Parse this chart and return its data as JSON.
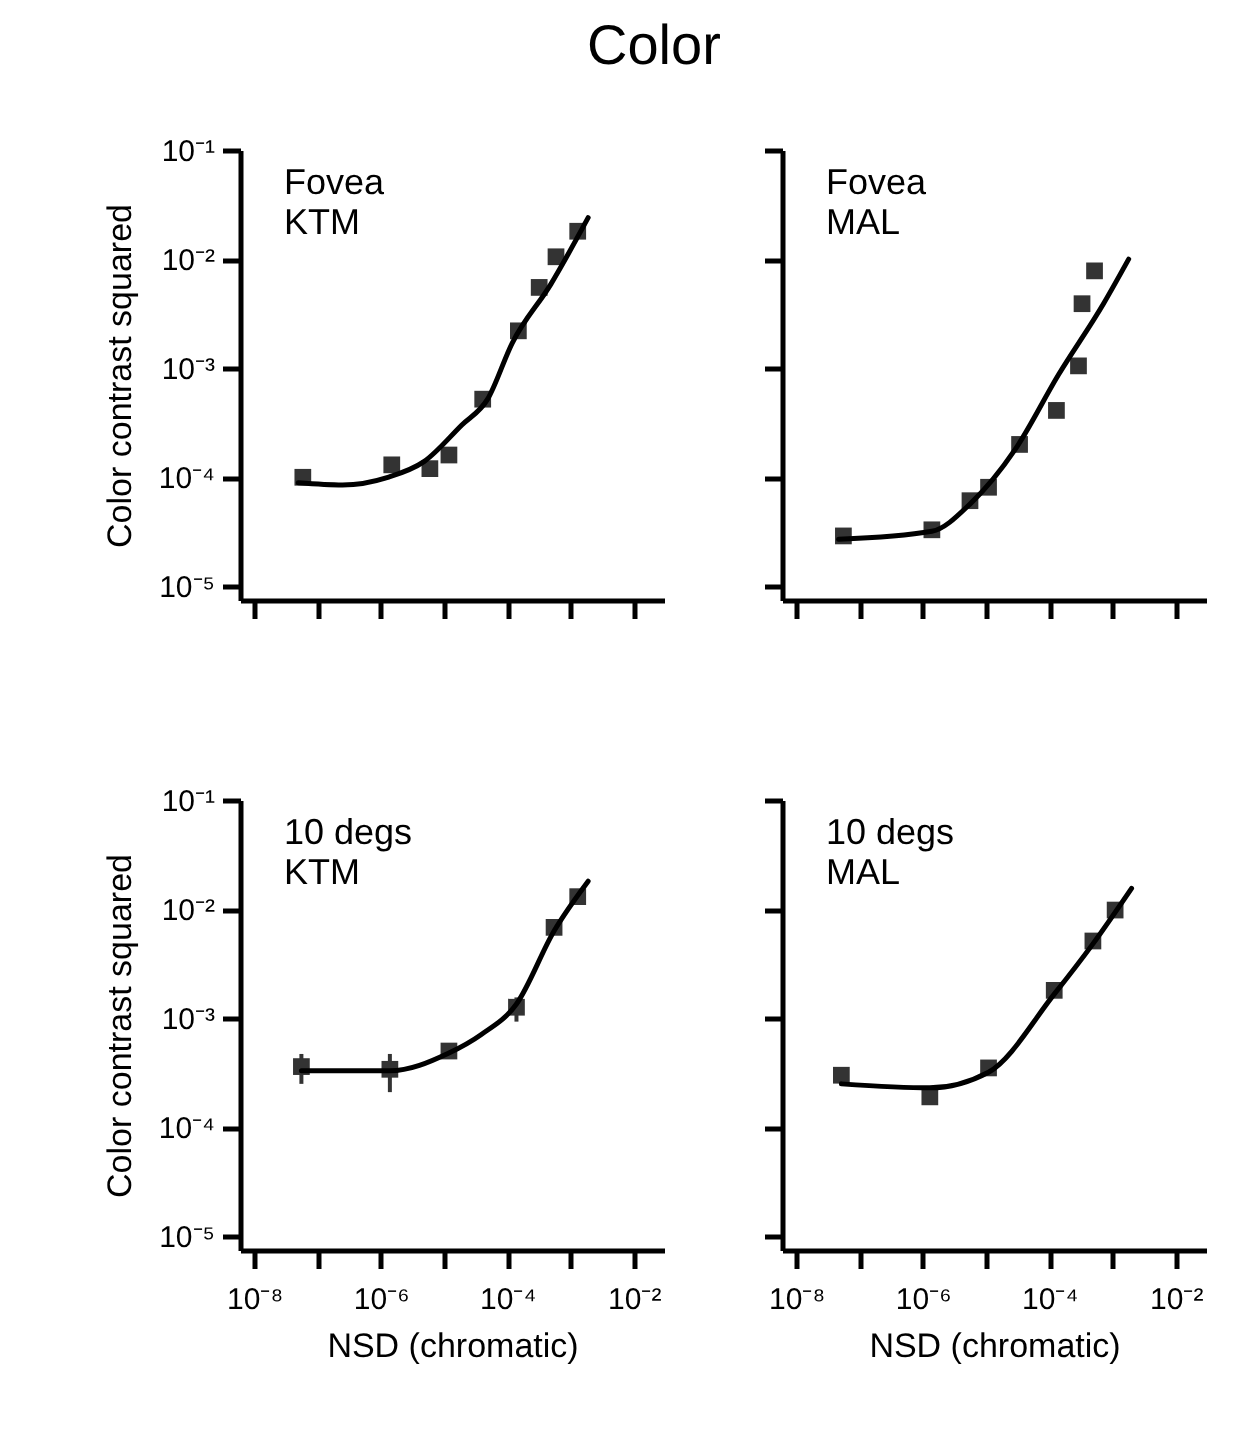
{
  "chart_data": [
    {
      "type": "scatter",
      "title": "Color",
      "ylabel": "Color contrast squared",
      "annotations": [
        "Fovea",
        "KTM"
      ],
      "log": "xy",
      "xlim": [
        6e-09,
        0.03
      ],
      "ylim": [
        7.5e-06,
        0.1
      ],
      "xticks": [
        {
          "value": 1e-08,
          "label": null
        },
        {
          "value": 1e-07,
          "label": null
        },
        {
          "value": 1e-06,
          "label": null
        },
        {
          "value": 1e-05,
          "label": null
        },
        {
          "value": 0.0001,
          "label": null
        },
        {
          "value": 0.001,
          "label": null
        },
        {
          "value": 0.01,
          "label": null
        }
      ],
      "yticks": [
        {
          "value": 1e-05,
          "label": "10⁻⁵"
        },
        {
          "value": 0.0001,
          "label": "10⁻⁴"
        },
        {
          "value": 0.001,
          "label": "10⁻³"
        },
        {
          "value": 0.01,
          "label": "10⁻²"
        },
        {
          "value": 0.1,
          "label": "10⁻¹"
        }
      ],
      "tick_labels": "y",
      "grid": false,
      "series": [
        {
          "marker": "square",
          "color": "#333333",
          "x": [
            5.9e-08,
            1.5e-06,
            6e-06,
            1.2e-05,
            4.1e-05,
            0.00015,
            0.00032,
            0.00059,
            0.0013
          ],
          "values": [
            0.0001,
            0.00013,
            0.00012,
            0.00016,
            0.00052,
            0.0022,
            0.0055,
            0.0105,
            0.018
          ]
        },
        {
          "type": "line",
          "color": "#000000",
          "x": [
            5e-08,
            2.5e-07,
            1.3e-06,
            4.9e-06,
            1.9e-05,
            4.9e-05,
            0.00012,
            0.00049,
            0.0019
          ],
          "values": [
            8.9e-05,
            8.5e-05,
            0.0001,
            0.00014,
            0.0003,
            0.00052,
            0.0017,
            0.0059,
            0.024
          ]
        }
      ]
    },
    {
      "type": "scatter",
      "annotations": [
        "Fovea",
        "MAL"
      ],
      "log": "xy",
      "xlim": [
        6e-09,
        0.03
      ],
      "ylim": [
        7.5e-06,
        0.1
      ],
      "xticks": [
        {
          "value": 1e-08,
          "label": null
        },
        {
          "value": 1e-07,
          "label": null
        },
        {
          "value": 1e-06,
          "label": null
        },
        {
          "value": 1e-05,
          "label": null
        },
        {
          "value": 0.0001,
          "label": null
        },
        {
          "value": 0.001,
          "label": null
        },
        {
          "value": 0.01,
          "label": null
        }
      ],
      "yticks": [
        {
          "value": 1e-05,
          "label": null
        },
        {
          "value": 0.0001,
          "label": null
        },
        {
          "value": 0.001,
          "label": null
        },
        {
          "value": 0.01,
          "label": null
        },
        {
          "value": 0.1,
          "label": null
        }
      ],
      "tick_labels": false,
      "grid": false,
      "series": [
        {
          "marker": "square",
          "color": "#333333",
          "x": [
            5.6e-08,
            1.4e-06,
            5.6e-06,
            1.1e-05,
            3.4e-05,
            0.00013,
            0.00029,
            0.00033,
            0.00052
          ],
          "values": [
            2.9e-05,
            3.3e-05,
            6.1e-05,
            8.1e-05,
            0.0002,
            0.00041,
            0.00105,
            0.0039,
            0.0078
          ]
        },
        {
          "type": "line",
          "color": "#000000",
          "x": [
            4.7e-08,
            1.4e-06,
            5.8e-06,
            2.9e-05,
            0.00014,
            0.00072,
            0.0018
          ],
          "values": [
            2.7e-05,
            3.2e-05,
            5.8e-05,
            0.00018,
            0.00087,
            0.0039,
            0.01
          ]
        }
      ]
    },
    {
      "type": "scatter",
      "xlabel": "NSD (chromatic)",
      "ylabel": "Color contrast squared",
      "annotations": [
        "10 degs",
        "KTM"
      ],
      "log": "xy",
      "xlim": [
        6e-09,
        0.03
      ],
      "ylim": [
        7.5e-06,
        0.1
      ],
      "xticks": [
        {
          "value": 1e-08,
          "label": "10⁻⁸"
        },
        {
          "value": 1e-07,
          "label": null
        },
        {
          "value": 1e-06,
          "label": "10⁻⁶"
        },
        {
          "value": 1e-05,
          "label": null
        },
        {
          "value": 0.0001,
          "label": "10⁻⁴"
        },
        {
          "value": 0.001,
          "label": null
        },
        {
          "value": 0.01,
          "label": "10⁻²"
        }
      ],
      "yticks": [
        {
          "value": 1e-05,
          "label": "10⁻⁵"
        },
        {
          "value": 0.0001,
          "label": "10⁻⁴"
        },
        {
          "value": 0.001,
          "label": "10⁻³"
        },
        {
          "value": 0.01,
          "label": "10⁻²"
        },
        {
          "value": 0.1,
          "label": "10⁻¹"
        }
      ],
      "grid": false,
      "series": [
        {
          "marker": "square",
          "color": "#333333",
          "x": [
            5.6e-08,
            1.4e-06,
            1.2e-05,
            0.00014,
            0.00055,
            0.0013
          ],
          "values": [
            0.00036,
            0.00034,
            0.0005,
            0.00126,
            0.0068,
            0.013
          ],
          "errors": [
            [
              0.00025,
              0.00047
            ],
            [
              0.00021,
              0.00047
            ],
            null,
            [
              0.00093,
              0.00155
            ],
            null,
            null
          ]
        },
        {
          "type": "line",
          "color": "#000000",
          "x": [
            5.6e-08,
            1.4e-06,
            1.2e-05,
            3.9e-05,
            0.00014,
            0.00055,
            0.0019
          ],
          "values": [
            0.00033,
            0.00033,
            0.00048,
            0.00071,
            0.00135,
            0.0063,
            0.018
          ]
        }
      ]
    },
    {
      "type": "scatter",
      "xlabel": "NSD (chromatic)",
      "annotations": [
        "10 degs",
        "MAL"
      ],
      "log": "xy",
      "xlim": [
        6e-09,
        0.03
      ],
      "ylim": [
        7.5e-06,
        0.1
      ],
      "xticks": [
        {
          "value": 1e-08,
          "label": "10⁻⁸"
        },
        {
          "value": 1e-07,
          "label": null
        },
        {
          "value": 1e-06,
          "label": "10⁻⁶"
        },
        {
          "value": 1e-05,
          "label": null
        },
        {
          "value": 0.0001,
          "label": "10⁻⁴"
        },
        {
          "value": 0.001,
          "label": null
        },
        {
          "value": 0.01,
          "label": "10⁻²"
        }
      ],
      "yticks": [
        {
          "value": 1e-05,
          "label": null
        },
        {
          "value": 0.0001,
          "label": null
        },
        {
          "value": 0.001,
          "label": null
        },
        {
          "value": 0.01,
          "label": null
        },
        {
          "value": 0.1,
          "label": null
        }
      ],
      "tick_labels": "x",
      "grid": false,
      "series": [
        {
          "marker": "square",
          "color": "#333333",
          "x": [
            5.2e-08,
            1.3e-06,
            1.1e-05,
            0.00012,
            0.00049,
            0.0011
          ],
          "values": [
            0.0003,
            0.00019,
            0.00035,
            0.0018,
            0.0051,
            0.0098
          ]
        },
        {
          "type": "line",
          "color": "#000000",
          "x": [
            5.2e-08,
            1.3e-06,
            1.1e-05,
            0.00012,
            0.00049,
            0.002
          ],
          "values": [
            0.00025,
            0.00023,
            0.00032,
            0.00166,
            0.0048,
            0.0155
          ]
        }
      ]
    }
  ]
}
